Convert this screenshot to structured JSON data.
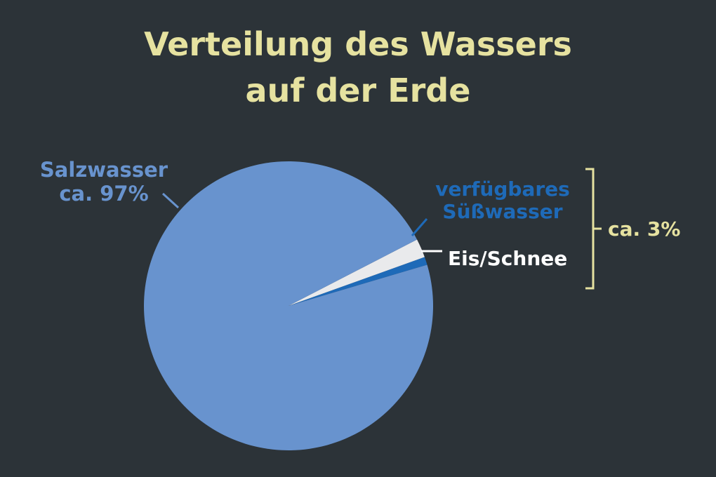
{
  "colors": {
    "background": "#2c3338",
    "title": "#e6e2a0",
    "salt": "#6893ce",
    "fresh": "#1e6ab8",
    "ice": "#e9eaec",
    "ice_label": "#ffffff",
    "bracket": "#e6e2a0"
  },
  "chart_data": {
    "type": "pie",
    "title_lines": [
      "Verteilung des Wassers",
      "auf der Erde"
    ],
    "slices": [
      {
        "key": "fresh",
        "label_lines": [
          "verfügbares",
          "Süßwasser"
        ],
        "value": 0.9,
        "color": "#1e6ab8"
      },
      {
        "key": "ice",
        "label_lines": [
          "Eis/Schnee"
        ],
        "value": 2.1,
        "color": "#e9eaec"
      },
      {
        "key": "salt",
        "label_lines": [
          "Salzwasser",
          "ca. 97%"
        ],
        "value": 97,
        "color": "#6893ce"
      }
    ],
    "group_bracket": {
      "covers": [
        "fresh",
        "ice"
      ],
      "label": "ca. 3%"
    }
  }
}
